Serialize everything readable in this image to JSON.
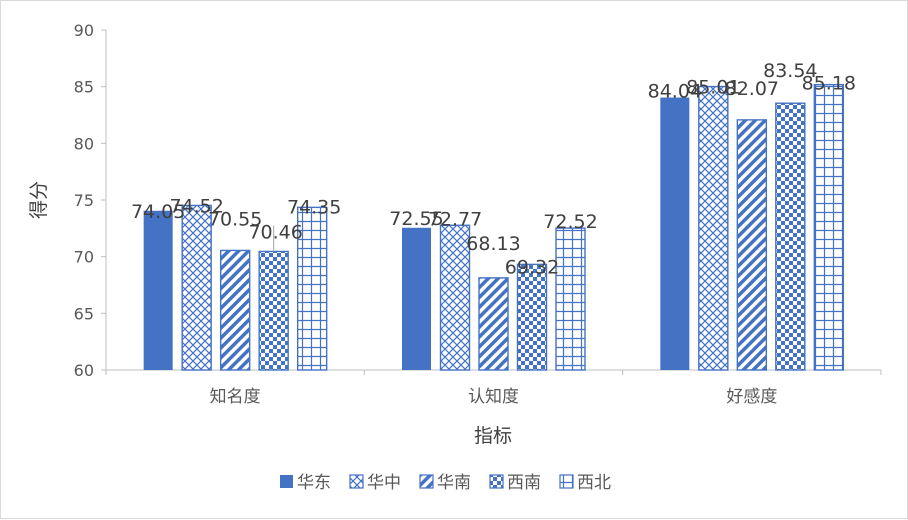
{
  "chart_data": {
    "type": "bar",
    "title": "",
    "xlabel": "指标",
    "ylabel": "得分",
    "ylim": [
      60,
      90
    ],
    "yticks": [
      60,
      65,
      70,
      75,
      80,
      85,
      90
    ],
    "categories": [
      "知名度",
      "认知度",
      "好感度"
    ],
    "series": [
      {
        "name": "华东",
        "values": [
          74.05,
          72.55,
          84.04
        ],
        "color": "#4472c4",
        "pattern": "solid"
      },
      {
        "name": "华中",
        "values": [
          74.52,
          72.77,
          85.01
        ],
        "color": "#4472c4",
        "pattern": "crosshatch"
      },
      {
        "name": "华南",
        "values": [
          70.55,
          68.13,
          82.07
        ],
        "color": "#4472c4",
        "pattern": "diagonal"
      },
      {
        "name": "西南",
        "values": [
          70.46,
          69.32,
          83.54
        ],
        "color": "#4472c4",
        "pattern": "checker"
      },
      {
        "name": "西北",
        "values": [
          74.35,
          72.52,
          85.18
        ],
        "color": "#4472c4",
        "pattern": "grid"
      }
    ],
    "data_labels": true,
    "grid": false,
    "legend": "bottom"
  }
}
